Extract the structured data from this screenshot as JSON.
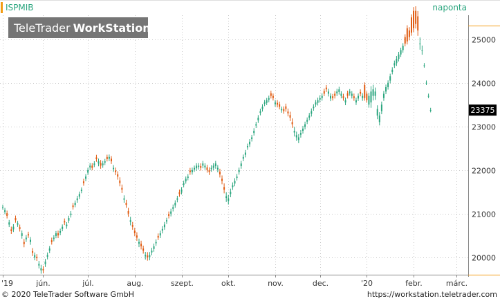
{
  "header": {
    "symbol": "ISPMIB",
    "interval": "naponta",
    "watermark_brand": "TeleTrader",
    "watermark_product": "WorkStation"
  },
  "footer": {
    "copyright": "© 2020 TeleTrader Software GmbH",
    "url": "https://workstation.teletrader.com"
  },
  "colors": {
    "up": "#2aa57e",
    "down": "#e05a10",
    "accent": "#f39c12",
    "grid": "#c8c8c8"
  },
  "chart_data": {
    "type": "candlestick",
    "title": "ISPMIB",
    "period": "naponta",
    "last_value": 23375,
    "y_ticks": [
      20000,
      21000,
      22000,
      23000,
      24000,
      25000
    ],
    "y_tick_labels": [
      "20000",
      "21000",
      "22000",
      "23000",
      "24000",
      "25000"
    ],
    "ylim": [
      19600,
      25550
    ],
    "x_tick_labels": [
      "'19",
      "jún.",
      "júl.",
      "aug.",
      "szept.",
      "okt.",
      "nov.",
      "dec.",
      "'20",
      "febr.",
      "márc."
    ],
    "x_tick_index": [
      0,
      19,
      40,
      62,
      84,
      106,
      128,
      149,
      171,
      193,
      213
    ],
    "x_range": [
      0,
      218
    ],
    "series_close": [
      21150,
      21080,
      20950,
      20800,
      20600,
      20700,
      20850,
      20780,
      20650,
      20550,
      20300,
      20450,
      20500,
      20400,
      20100,
      20050,
      19980,
      19850,
      19750,
      19700,
      19900,
      20050,
      20200,
      20350,
      20450,
      20550,
      20500,
      20600,
      20700,
      20800,
      20750,
      20900,
      21000,
      21150,
      21250,
      21350,
      21450,
      21550,
      21700,
      21850,
      22000,
      22100,
      22050,
      22150,
      22250,
      22200,
      22100,
      22150,
      22200,
      22250,
      22300,
      22200,
      22050,
      21950,
      21850,
      21700,
      21550,
      21350,
      21200,
      21000,
      20850,
      20700,
      20550,
      20450,
      20350,
      20250,
      20150,
      20050,
      20000,
      20050,
      20150,
      20250,
      20350,
      20450,
      20550,
      20650,
      20750,
      20850,
      20950,
      21050,
      21150,
      21250,
      21350,
      21450,
      21550,
      21700,
      21800,
      21850,
      21950,
      22000,
      22050,
      22100,
      22100,
      22050,
      22150,
      22100,
      22000,
      21950,
      22050,
      22100,
      22150,
      22050,
      21900,
      21750,
      21550,
      21400,
      21350,
      21500,
      21650,
      21750,
      21850,
      22000,
      22150,
      22300,
      22400,
      22550,
      22650,
      22750,
      22900,
      23050,
      23200,
      23350,
      23450,
      23550,
      23600,
      23650,
      23700,
      23650,
      23550,
      23500,
      23450,
      23400,
      23350,
      23400,
      23300,
      23200,
      23050,
      22900,
      22800,
      22750,
      22850,
      22950,
      23050,
      23150,
      23250,
      23350,
      23450,
      23550,
      23600,
      23650,
      23700,
      23750,
      23850,
      23800,
      23700,
      23650,
      23700,
      23800,
      23850,
      23750,
      23650,
      23600,
      23700,
      23800,
      23750,
      23650,
      23600,
      23700,
      23750,
      23700,
      23650,
      23600,
      23700,
      23800,
      23850,
      23800,
      23400,
      23250,
      23500,
      23750,
      23900,
      24000,
      24150,
      24300,
      24450,
      24550,
      24650,
      24750,
      24850,
      24900,
      24950,
      25050,
      25150,
      25250,
      25350,
      25200,
      24900,
      24750,
      24400,
      24000,
      23700,
      23375
    ],
    "series_open_offset": [
      0,
      -40,
      60,
      -50,
      40,
      -60,
      50,
      -30,
      40,
      -60,
      50,
      -40,
      30,
      -50,
      40,
      -60,
      30,
      -40,
      -50,
      30,
      -60,
      -40,
      -50,
      40,
      -30,
      -60,
      50,
      -40,
      -50,
      30,
      -40,
      -60,
      -30,
      40,
      -50,
      -40,
      -60,
      -30,
      40,
      -50,
      -60,
      -40,
      50,
      -30,
      40,
      -50,
      60,
      -40,
      -30,
      50,
      -40,
      60,
      -30,
      40,
      50,
      60,
      40,
      -30,
      50,
      60,
      -40,
      40,
      60,
      50,
      -40,
      60,
      50,
      -30,
      40,
      -50,
      -40,
      -60,
      -30,
      40,
      -50,
      -40,
      -60,
      -30,
      40,
      -50,
      -40,
      -60,
      -30,
      40,
      -50,
      -40,
      -60,
      -30,
      40,
      -50,
      -40,
      -60,
      -30,
      40,
      -50,
      -40,
      60,
      50,
      -30,
      -50,
      -60,
      -40,
      60,
      50,
      60,
      -40,
      -60,
      -50,
      -40,
      -60,
      -30,
      -50,
      -60,
      -40,
      -50,
      -30,
      -60,
      -40,
      -50,
      -30,
      -60,
      -40,
      -50,
      -30,
      -60,
      -40,
      60,
      50,
      -40,
      40,
      60,
      -30,
      50,
      60,
      40,
      60,
      50,
      -40,
      -50,
      -60,
      -40,
      -50,
      -60,
      -40,
      -50,
      -60,
      -30,
      -50,
      -60,
      -40,
      -50,
      60,
      40,
      -50,
      -60,
      40,
      50,
      -40,
      -60,
      -50,
      40,
      -50,
      60,
      -40,
      -50,
      40,
      -50,
      -60,
      40,
      -50,
      300,
      150,
      -200,
      -250,
      -150,
      -100,
      -150,
      -150,
      -150,
      -100,
      -100,
      -100,
      -100,
      -50,
      -50,
      -100,
      -100,
      -100,
      -100,
      150,
      300,
      150,
      350,
      400,
      300,
      325
    ],
    "series_range": [
      160,
      150,
      170,
      160,
      180,
      170,
      160,
      150,
      170,
      180,
      200,
      170,
      160,
      180,
      200,
      170,
      180,
      190,
      220,
      200,
      180,
      170,
      160,
      170,
      160,
      150,
      170,
      160,
      150,
      170,
      160,
      150,
      170,
      160,
      150,
      170,
      160,
      150,
      170,
      160,
      150,
      170,
      160,
      150,
      170,
      180,
      200,
      170,
      160,
      150,
      160,
      170,
      180,
      190,
      200,
      210,
      220,
      200,
      190,
      210,
      220,
      200,
      190,
      210,
      220,
      200,
      190,
      210,
      220,
      200,
      190,
      180,
      170,
      160,
      170,
      180,
      170,
      160,
      170,
      180,
      170,
      160,
      170,
      180,
      170,
      160,
      150,
      160,
      170,
      160,
      150,
      160,
      170,
      180,
      170,
      160,
      170,
      180,
      170,
      160,
      170,
      180,
      200,
      220,
      240,
      260,
      230,
      210,
      190,
      180,
      170,
      160,
      170,
      160,
      170,
      160,
      170,
      160,
      170,
      160,
      170,
      160,
      170,
      160,
      150,
      160,
      170,
      160,
      170,
      180,
      170,
      160,
      170,
      180,
      200,
      220,
      240,
      260,
      230,
      210,
      190,
      180,
      170,
      160,
      170,
      180,
      170,
      160,
      170,
      180,
      170,
      160,
      170,
      180,
      170,
      160,
      170,
      180,
      170,
      160,
      170,
      180,
      170,
      160,
      170,
      180,
      170,
      160,
      170,
      180,
      170,
      160,
      200,
      350,
      300,
      260,
      240,
      220,
      200,
      180,
      170,
      160,
      170,
      160,
      170,
      180,
      170,
      160,
      170,
      180,
      200,
      220,
      200,
      250,
      300,
      350,
      400,
      300
    ]
  }
}
